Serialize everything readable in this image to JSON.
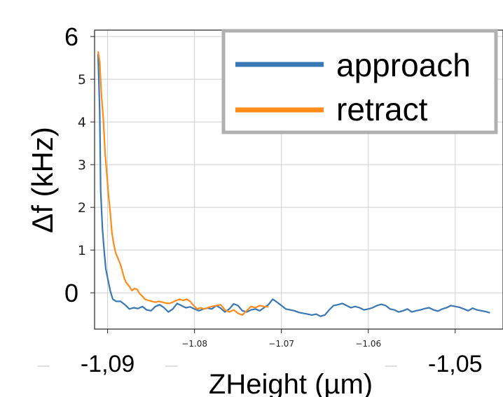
{
  "chart_data": {
    "type": "line",
    "xlabel": "ZHeight (µm)",
    "ylabel": "Δf (kHz)",
    "xlim": [
      -1.0915,
      -1.0445
    ],
    "ylim": [
      -0.85,
      6.15
    ],
    "grid": true,
    "legend_position": "top-right",
    "y_ticks": [
      {
        "value": 6,
        "label": "6",
        "size": "large"
      },
      {
        "value": 5,
        "label": "5",
        "size": "small"
      },
      {
        "value": 4,
        "label": "4",
        "size": "small"
      },
      {
        "value": 3,
        "label": "3",
        "size": "small"
      },
      {
        "value": 2,
        "label": "2",
        "size": "small"
      },
      {
        "value": 1,
        "label": "1",
        "size": "small"
      },
      {
        "value": 0,
        "label": "0",
        "size": "large"
      }
    ],
    "x_ticks_small": [
      {
        "value": -1.08,
        "label": "−1.08"
      },
      {
        "value": -1.07,
        "label": "−1.07"
      },
      {
        "value": -1.06,
        "label": "−1.06"
      }
    ],
    "x_ticks_large": [
      {
        "value": -1.09,
        "label": "-1,09"
      },
      {
        "value": -1.05,
        "label": "-1,05"
      }
    ],
    "gridlines_x": [
      -1.09,
      -1.08,
      -1.07,
      -1.06,
      -1.05
    ],
    "series": [
      {
        "name": "approach",
        "color": "#3a78b5",
        "x": [
          -1.0911,
          -1.0909,
          -1.0908,
          -1.0906,
          -1.0904,
          -1.0902,
          -1.09,
          -1.0897,
          -1.0894,
          -1.089,
          -1.0885,
          -1.088,
          -1.0875,
          -1.087,
          -1.0865,
          -1.086,
          -1.0855,
          -1.085,
          -1.0845,
          -1.084,
          -1.0835,
          -1.083,
          -1.0825,
          -1.082,
          -1.0815,
          -1.081,
          -1.0805,
          -1.08,
          -1.0795,
          -1.079,
          -1.0785,
          -1.078,
          -1.0775,
          -1.077,
          -1.0765,
          -1.076,
          -1.0755,
          -1.075,
          -1.0745,
          -1.074,
          -1.0735,
          -1.073,
          -1.0725,
          -1.072,
          -1.0715,
          -1.071,
          -1.0705,
          -1.07,
          -1.0695,
          -1.069,
          -1.0685,
          -1.068,
          -1.0675,
          -1.067,
          -1.0665,
          -1.066,
          -1.0655,
          -1.065,
          -1.0645,
          -1.064,
          -1.0635,
          -1.063,
          -1.0625,
          -1.062,
          -1.0615,
          -1.061,
          -1.0605,
          -1.06,
          -1.0595,
          -1.059,
          -1.0585,
          -1.058,
          -1.0575,
          -1.057,
          -1.0565,
          -1.056,
          -1.0555,
          -1.055,
          -1.0545,
          -1.054,
          -1.0535,
          -1.053,
          -1.0525,
          -1.052,
          -1.0515,
          -1.051,
          -1.0505,
          -1.05,
          -1.0495,
          -1.049,
          -1.0485,
          -1.048,
          -1.0475,
          -1.047,
          -1.0465,
          -1.046
        ],
        "y": [
          5.6,
          4.2,
          2.4,
          1.5,
          1.0,
          0.55,
          0.35,
          0.05,
          -0.15,
          -0.2,
          -0.2,
          -0.28,
          -0.38,
          -0.35,
          -0.37,
          -0.32,
          -0.4,
          -0.42,
          -0.32,
          -0.28,
          -0.35,
          -0.45,
          -0.38,
          -0.25,
          -0.3,
          -0.35,
          -0.33,
          -0.38,
          -0.42,
          -0.38,
          -0.36,
          -0.38,
          -0.3,
          -0.36,
          -0.45,
          -0.38,
          -0.26,
          -0.3,
          -0.42,
          -0.45,
          -0.4,
          -0.38,
          -0.42,
          -0.35,
          -0.28,
          -0.15,
          -0.22,
          -0.3,
          -0.38,
          -0.4,
          -0.42,
          -0.46,
          -0.48,
          -0.5,
          -0.52,
          -0.5,
          -0.55,
          -0.52,
          -0.4,
          -0.3,
          -0.28,
          -0.25,
          -0.3,
          -0.35,
          -0.32,
          -0.35,
          -0.4,
          -0.38,
          -0.35,
          -0.3,
          -0.27,
          -0.3,
          -0.38,
          -0.4,
          -0.45,
          -0.42,
          -0.38,
          -0.45,
          -0.42,
          -0.4,
          -0.37,
          -0.35,
          -0.4,
          -0.43,
          -0.38,
          -0.35,
          -0.3,
          -0.32,
          -0.34,
          -0.38,
          -0.42,
          -0.36,
          -0.4,
          -0.42,
          -0.44,
          -0.47
        ]
      },
      {
        "name": "retract",
        "color": "#ff8c1a",
        "x": [
          -1.0911,
          -1.0909,
          -1.0907,
          -1.0905,
          -1.0903,
          -1.0901,
          -1.0899,
          -1.0897,
          -1.0895,
          -1.0893,
          -1.0891,
          -1.0889,
          -1.0887,
          -1.0885,
          -1.0883,
          -1.0881,
          -1.0879,
          -1.0877,
          -1.0875,
          -1.0872,
          -1.0869,
          -1.0866,
          -1.0863,
          -1.086,
          -1.0857,
          -1.0853,
          -1.0849,
          -1.0845,
          -1.0841,
          -1.0837,
          -1.0833,
          -1.0829,
          -1.0825,
          -1.0821,
          -1.0817,
          -1.0813,
          -1.0809,
          -1.0805,
          -1.0801,
          -1.0797,
          -1.0793,
          -1.0789,
          -1.0785,
          -1.078,
          -1.0775,
          -1.077,
          -1.0765,
          -1.076,
          -1.0755,
          -1.075,
          -1.0745,
          -1.074,
          -1.0735,
          -1.073,
          -1.0725,
          -1.072,
          -1.0715
        ],
        "y": [
          5.65,
          5.4,
          4.6,
          4.1,
          3.3,
          2.8,
          2.3,
          1.9,
          1.4,
          1.15,
          0.95,
          0.85,
          0.75,
          0.65,
          0.5,
          0.35,
          0.25,
          0.2,
          0.15,
          0.05,
          0.1,
          0.08,
          -0.02,
          -0.08,
          -0.15,
          -0.18,
          -0.2,
          -0.22,
          -0.2,
          -0.22,
          -0.24,
          -0.25,
          -0.22,
          -0.18,
          -0.15,
          -0.18,
          -0.15,
          -0.2,
          -0.3,
          -0.38,
          -0.35,
          -0.38,
          -0.35,
          -0.32,
          -0.3,
          -0.28,
          -0.4,
          -0.45,
          -0.4,
          -0.48,
          -0.52,
          -0.42,
          -0.32,
          -0.35,
          -0.3,
          -0.32,
          -0.33
        ]
      }
    ]
  }
}
